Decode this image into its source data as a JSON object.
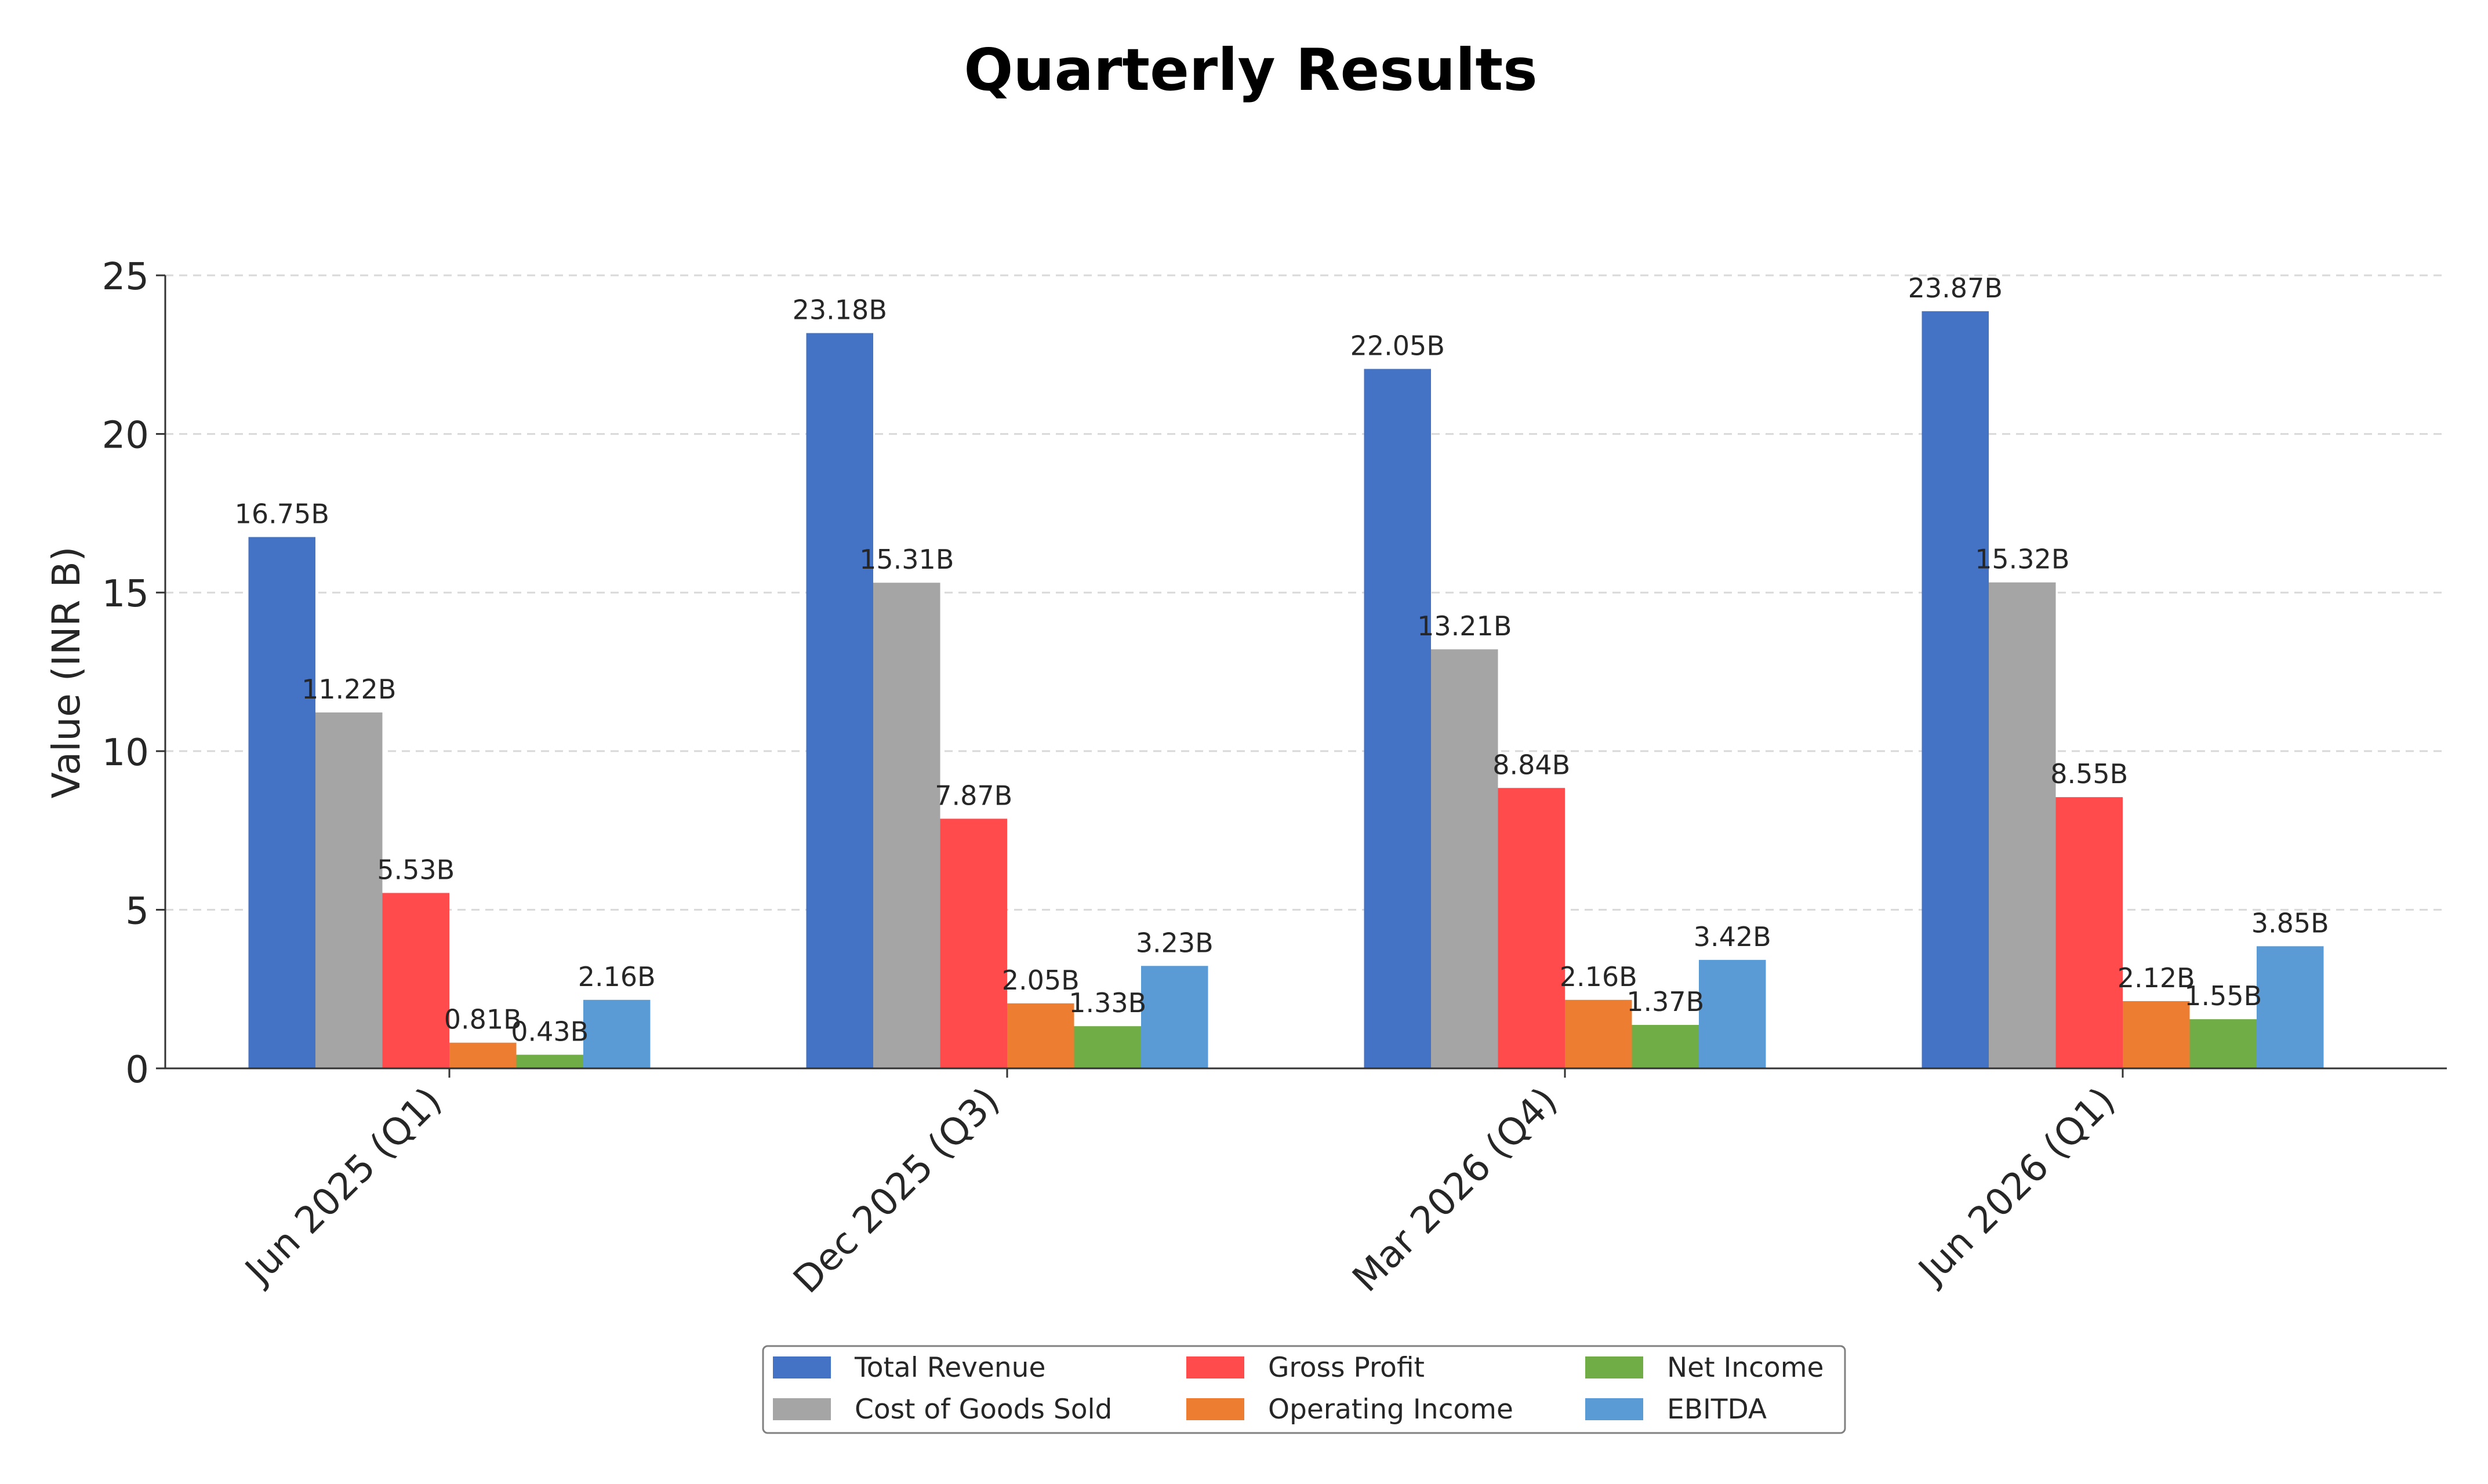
{
  "chart_data": {
    "type": "bar",
    "title": "Quarterly Results",
    "xlabel": "",
    "ylabel": "Value (INR B)",
    "categories": [
      "Jun 2025 (Q1)",
      "Dec 2025 (Q3)",
      "Mar 2026 (Q4)",
      "Jun 2026 (Q1)"
    ],
    "ylim": [
      0,
      25
    ],
    "yticks": [
      0,
      5,
      10,
      15,
      20,
      25
    ],
    "grid": true,
    "legend_position": "bottom-center",
    "value_label_suffix": "B",
    "series": [
      {
        "name": "Total Revenue",
        "color": "#4472c4",
        "values": [
          16.75,
          23.18,
          22.05,
          23.87
        ]
      },
      {
        "name": "Cost of Goods Sold",
        "color": "#a5a5a5",
        "values": [
          11.22,
          15.31,
          13.21,
          15.32
        ]
      },
      {
        "name": "Gross Profit",
        "color": "#ff4b4b",
        "values": [
          5.53,
          7.87,
          8.84,
          8.55
        ]
      },
      {
        "name": "Operating Income",
        "color": "#ed7d31",
        "values": [
          0.81,
          2.05,
          2.16,
          2.12
        ]
      },
      {
        "name": "Net Income",
        "color": "#70ad47",
        "values": [
          0.43,
          1.33,
          1.37,
          1.55
        ]
      },
      {
        "name": "EBITDA",
        "color": "#5b9bd5",
        "values": [
          2.16,
          3.23,
          3.42,
          3.85
        ]
      }
    ]
  }
}
